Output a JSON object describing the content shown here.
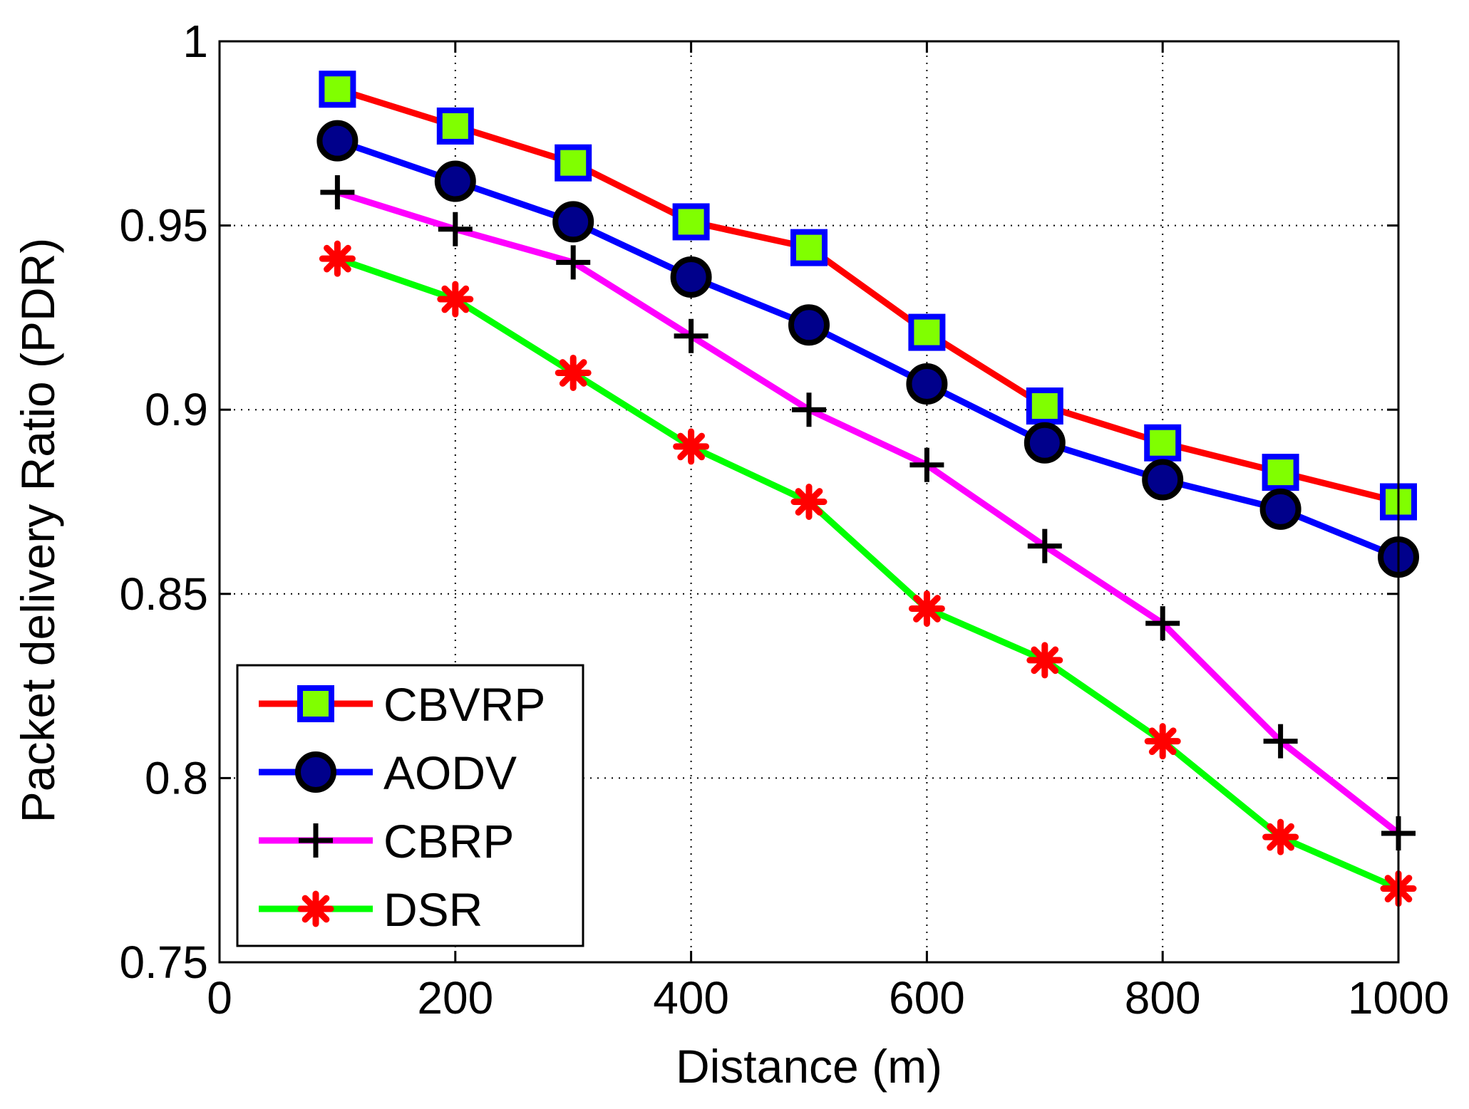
{
  "chart_data": {
    "type": "line",
    "title": "",
    "xlabel": "Distance (m)",
    "ylabel": "Packet delivery Ratio  (PDR)",
    "xlim": [
      0,
      1000
    ],
    "ylim": [
      0.75,
      1.0
    ],
    "xticks": [
      0,
      200,
      400,
      600,
      800,
      1000
    ],
    "xtick_labels": [
      "0",
      "200",
      "400",
      "600",
      "800",
      "1000"
    ],
    "yticks": [
      0.75,
      0.8,
      0.85,
      0.9,
      0.95,
      1.0
    ],
    "ytick_labels": [
      "0.75",
      "0.8",
      "0.85",
      "0.9",
      "0.95",
      "1"
    ],
    "grid": true,
    "legend_position": "bottom-left",
    "x": [
      100,
      200,
      300,
      400,
      500,
      600,
      700,
      800,
      900,
      1000
    ],
    "series": [
      {
        "name": "CBVRP",
        "color": "#ff0000",
        "marker": "square",
        "marker_edge": "#0000ff",
        "marker_face": "#80ff00",
        "values": [
          0.987,
          0.977,
          0.967,
          0.951,
          0.944,
          0.921,
          0.901,
          0.891,
          0.883,
          0.875
        ]
      },
      {
        "name": "AODV",
        "color": "#0000ff",
        "marker": "circle",
        "marker_edge": "#000000",
        "marker_face": "#00008b",
        "values": [
          0.973,
          0.962,
          0.951,
          0.936,
          0.923,
          0.907,
          0.891,
          0.881,
          0.873,
          0.86
        ]
      },
      {
        "name": "CBRP",
        "color": "#ff00ff",
        "marker": "plus",
        "marker_edge": "#000000",
        "marker_face": "none",
        "values": [
          0.959,
          0.949,
          0.94,
          0.92,
          0.9,
          0.885,
          0.863,
          0.842,
          0.81,
          0.785
        ]
      },
      {
        "name": "DSR",
        "color": "#00ff00",
        "marker": "asterisk",
        "marker_edge": "#ff0000",
        "marker_face": "none",
        "values": [
          0.941,
          0.93,
          0.91,
          0.89,
          0.875,
          0.846,
          0.832,
          0.81,
          0.784,
          0.77
        ]
      }
    ]
  }
}
